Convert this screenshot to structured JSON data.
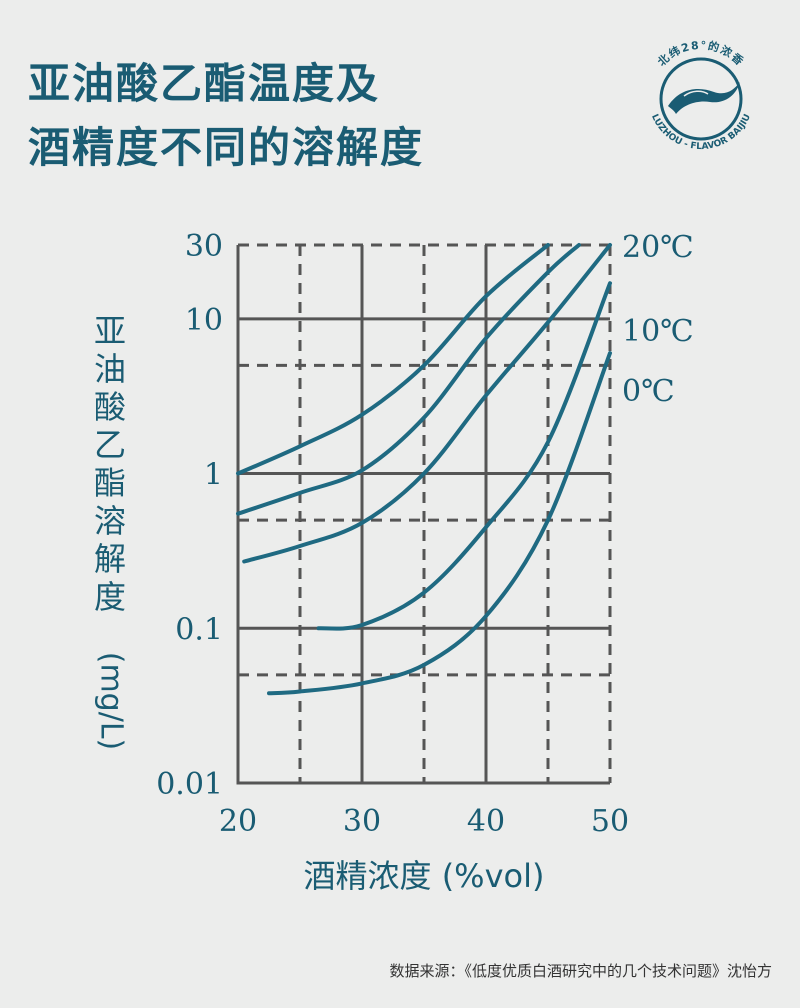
{
  "title": {
    "line1": "亚油酸乙酯温度及",
    "line2": "酒精度不同的溶解度"
  },
  "logo": {
    "top_text": "北纬28°的浓香",
    "bottom_text": "LUZHOU - FLAVOR BAIJIU"
  },
  "source": "数据来源：《低度优质白酒研究中的几个技术问题》沈怡方",
  "colors": {
    "brand": "#1a5c73",
    "curve": "#1f6a82",
    "grid": "#555555",
    "background": "#ecedec"
  },
  "chart_data": {
    "type": "line",
    "xlabel": "酒精浓度 (%vol)",
    "ylabel": "亚油酸乙酯溶解度 (mg/L)",
    "xlim": [
      20,
      50
    ],
    "ylim": [
      0.01,
      30
    ],
    "yscale": "log",
    "grid": true,
    "xticks": [
      "20",
      "30",
      "40",
      "50"
    ],
    "yticks": [
      "0.01",
      "0.1",
      "1",
      "10",
      "30"
    ],
    "temperature_labels": [
      "20℃",
      "10℃",
      "0℃"
    ],
    "series": [
      {
        "x": [
          20,
          25,
          30,
          35,
          40,
          45
        ],
        "y": [
          1.0,
          1.5,
          2.4,
          5.0,
          14,
          30
        ]
      },
      {
        "x": [
          20,
          25,
          30,
          35,
          40,
          45,
          47.5
        ],
        "y": [
          0.55,
          0.75,
          1.05,
          2.3,
          7.5,
          20,
          30
        ]
      },
      {
        "x": [
          20.5,
          25,
          30,
          35,
          40,
          45,
          50
        ],
        "y": [
          0.27,
          0.34,
          0.48,
          1.0,
          3.2,
          9.5,
          30
        ]
      },
      {
        "x": [
          26.5,
          30,
          35,
          40,
          45,
          50
        ],
        "y": [
          0.1,
          0.105,
          0.17,
          0.45,
          1.6,
          17
        ]
      },
      {
        "x": [
          22.5,
          25,
          30,
          35,
          40,
          45,
          50
        ],
        "y": [
          0.038,
          0.039,
          0.044,
          0.058,
          0.12,
          0.5,
          6
        ]
      }
    ]
  }
}
